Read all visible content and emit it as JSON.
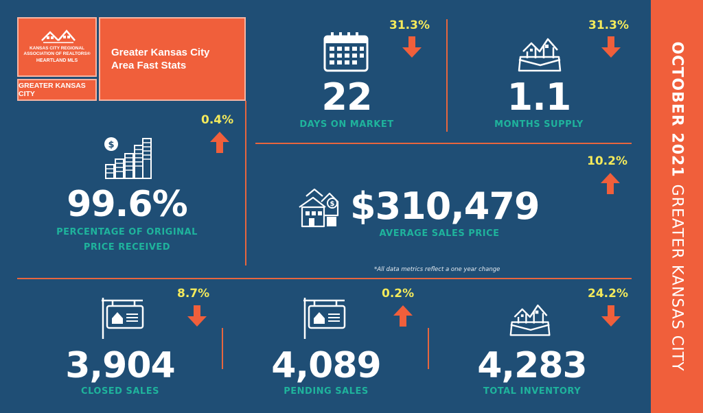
{
  "logo": {
    "line1": "KANSAS CITY REGIONAL",
    "line2": "ASSOCIATION OF REALTORS®",
    "line3": "HEARTLAND MLS"
  },
  "region_box": "GREATER KANSAS CITY",
  "title": {
    "line1": "Greater Kansas City",
    "line2": "Area Fast Stats"
  },
  "sidebar": {
    "month": "OCTOBER 2021",
    "region": "GREATER KANSAS CITY"
  },
  "stats": {
    "days_on_market": {
      "value": "22",
      "label": "DAYS ON MARKET",
      "change": "31.3%",
      "direction": "down",
      "icon": "calendar-icon"
    },
    "months_supply": {
      "value": "1.1",
      "label": "MONTHS SUPPLY",
      "change": "31.3%",
      "direction": "down",
      "icon": "houses-box-icon"
    },
    "pct_original_price": {
      "value": "99.6%",
      "label_line1": "PERCENTAGE OF ORIGINAL",
      "label_line2": "PRICE RECEIVED",
      "change": "0.4%",
      "direction": "up",
      "icon": "coin-stacks-icon"
    },
    "avg_sales_price": {
      "value": "$310,479",
      "label": "AVERAGE SALES PRICE",
      "change": "10.2%",
      "direction": "up",
      "icon": "house-price-icon"
    },
    "closed_sales": {
      "value": "3,904",
      "label": "CLOSED SALES",
      "change": "8.7%",
      "direction": "down",
      "icon": "sale-sign-icon"
    },
    "pending_sales": {
      "value": "4,089",
      "label": "PENDING SALES",
      "change": "0.2%",
      "direction": "up",
      "icon": "sale-sign-icon"
    },
    "total_inventory": {
      "value": "4,283",
      "label": "TOTAL INVENTORY",
      "change": "24.2%",
      "direction": "down",
      "icon": "houses-box-icon"
    }
  },
  "footnote": "*All data metrics reflect a one year change",
  "colors": {
    "background": "#1f4e75",
    "accent": "#f05f3b",
    "percent": "#f4ea5b",
    "label": "#1fb39c"
  }
}
